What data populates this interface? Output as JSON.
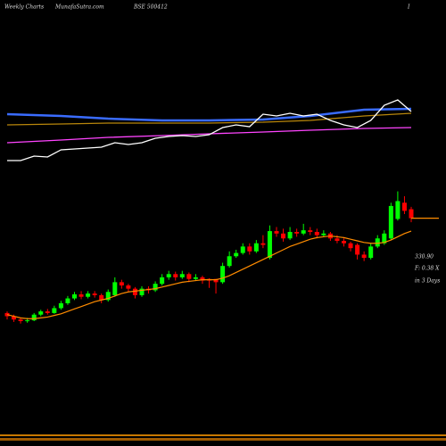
{
  "header": {
    "left": "Weekly Charts",
    "site": "MunafaSutra.com",
    "symbol": "BSE 500412",
    "right": "I"
  },
  "info": {
    "price": "330.90",
    "change": "F: 0.38  X",
    "horizon": "in 3 Days"
  },
  "chart_data": [
    {
      "type": "candlestick",
      "ylim": [
        160,
        490
      ],
      "up_color": "#00ff00",
      "down_color": "#ff0000",
      "ma_color": "#ff8c00",
      "ohlc": [
        [
          214,
          216,
          206,
          210
        ],
        [
          210,
          212,
          203,
          206
        ],
        [
          206,
          208,
          201,
          204
        ],
        [
          204,
          208,
          202,
          205
        ],
        [
          205,
          214,
          204,
          212
        ],
        [
          212,
          218,
          210,
          216
        ],
        [
          216,
          219,
          212,
          214
        ],
        [
          214,
          223,
          213,
          220
        ],
        [
          220,
          229,
          218,
          226
        ],
        [
          226,
          235,
          224,
          232
        ],
        [
          232,
          240,
          230,
          237
        ],
        [
          237,
          241,
          231,
          234
        ],
        [
          234,
          241,
          232,
          238
        ],
        [
          238,
          241,
          233,
          236
        ],
        [
          236,
          238,
          226,
          230
        ],
        [
          230,
          243,
          228,
          240
        ],
        [
          236,
          258,
          234,
          252
        ],
        [
          252,
          255,
          244,
          248
        ],
        [
          248,
          250,
          240,
          244
        ],
        [
          244,
          246,
          232,
          236
        ],
        [
          236,
          247,
          234,
          244
        ],
        [
          244,
          247,
          238,
          242
        ],
        [
          242,
          253,
          240,
          250
        ],
        [
          250,
          262,
          248,
          258
        ],
        [
          258,
          266,
          255,
          262
        ],
        [
          262,
          265,
          254,
          258
        ],
        [
          258,
          266,
          256,
          262
        ],
        [
          262,
          264,
          252,
          256
        ],
        [
          256,
          262,
          254,
          258
        ],
        [
          258,
          260,
          250,
          254
        ],
        [
          256,
          257,
          245,
          254
        ],
        [
          256,
          256,
          238,
          252
        ],
        [
          252,
          276,
          250,
          272
        ],
        [
          272,
          290,
          270,
          284
        ],
        [
          284,
          292,
          282,
          288
        ],
        [
          288,
          300,
          286,
          296
        ],
        [
          296,
          300,
          286,
          290
        ],
        [
          290,
          304,
          288,
          300
        ],
        [
          300,
          310,
          294,
          298
        ],
        [
          282,
          322,
          280,
          315
        ],
        [
          315,
          320,
          308,
          312
        ],
        [
          312,
          318,
          302,
          306
        ],
        [
          306,
          320,
          304,
          314
        ],
        [
          314,
          318,
          308,
          312
        ],
        [
          312,
          324,
          310,
          316
        ],
        [
          316,
          320,
          310,
          314
        ],
        [
          314,
          318,
          306,
          310
        ],
        [
          310,
          316,
          308,
          312
        ],
        [
          312,
          314,
          303,
          306
        ],
        [
          306,
          310,
          300,
          303
        ],
        [
          303,
          306,
          296,
          300
        ],
        [
          300,
          302,
          290,
          294
        ],
        [
          298,
          300,
          280,
          286
        ],
        [
          286,
          290,
          278,
          282
        ],
        [
          282,
          300,
          280,
          296
        ],
        [
          296,
          310,
          294,
          306
        ],
        [
          300,
          316,
          298,
          312
        ],
        [
          306,
          350,
          304,
          346
        ],
        [
          330,
          364,
          328,
          352
        ],
        [
          350,
          358,
          336,
          340
        ],
        [
          342,
          345,
          326,
          330.9
        ]
      ],
      "ma": [
        212,
        210,
        208,
        207,
        207,
        208,
        209,
        211,
        213,
        216,
        219,
        222,
        225,
        228,
        230,
        232,
        235,
        238,
        240,
        241,
        242,
        243,
        244,
        246,
        248,
        250,
        252,
        253,
        254,
        255,
        255,
        255,
        257,
        260,
        264,
        268,
        272,
        276,
        280,
        284,
        288,
        292,
        296,
        299,
        302,
        305,
        307,
        308,
        309,
        308,
        307,
        305,
        303,
        301,
        300,
        300,
        301,
        304,
        308,
        312,
        315
      ]
    },
    {
      "type": "line",
      "ylim": [
        0,
        100
      ],
      "series": [
        {
          "color": "#3a6cff",
          "x": [
            0,
            8,
            15,
            23,
            30,
            38,
            45,
            53,
            60
          ],
          "values": [
            76,
            73.3,
            69.3,
            66.7,
            66.7,
            68,
            73.3,
            82.7,
            84
          ]
        },
        {
          "color": "#b8860b",
          "x": [
            0,
            8,
            15,
            23,
            30,
            38,
            45,
            53,
            60
          ],
          "values": [
            60,
            61.3,
            62.7,
            62.7,
            62.7,
            64,
            66.7,
            73.3,
            77.3
          ]
        },
        {
          "color": "#ff44ff",
          "x": [
            0,
            8,
            15,
            23,
            30,
            38,
            45,
            53,
            60
          ],
          "values": [
            33.3,
            37.3,
            41.3,
            44,
            46.7,
            49.3,
            52,
            54.7,
            56
          ]
        },
        {
          "color": "#ffffff",
          "x": [
            0,
            2,
            4,
            6,
            8,
            10,
            12,
            14,
            16,
            18,
            20,
            22,
            24,
            26,
            28,
            30,
            32,
            34,
            36,
            38,
            40,
            42,
            44,
            46,
            48,
            50,
            52,
            54,
            56,
            58,
            60
          ],
          "values": [
            6.7,
            6.7,
            13.3,
            12,
            22.7,
            24,
            25.3,
            26.7,
            33.3,
            30.7,
            33.3,
            40,
            42.7,
            44,
            42.7,
            45.3,
            56,
            60,
            57.3,
            76,
            73.3,
            77.3,
            73.3,
            76,
            66.7,
            60,
            56,
            66.7,
            89.3,
            97.3,
            80
          ]
        }
      ]
    }
  ]
}
